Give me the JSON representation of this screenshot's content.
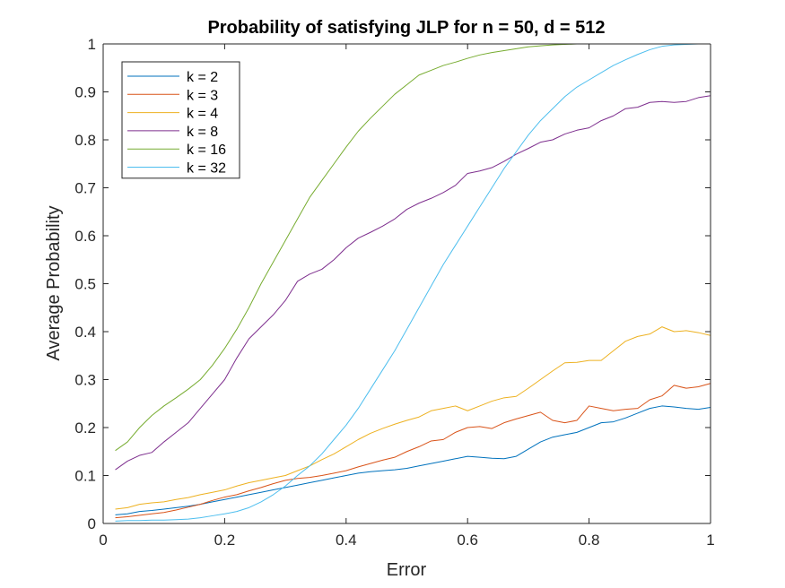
{
  "chart_data": {
    "type": "line",
    "title": "Probability of satisfying JLP for n = 50, d = 512",
    "xlabel": "Error",
    "ylabel": "Average Probability",
    "xlim": [
      0,
      1
    ],
    "ylim": [
      0,
      1
    ],
    "xticks": [
      "0",
      "0.2",
      "0.4",
      "0.6",
      "0.8",
      "1"
    ],
    "yticks": [
      "0",
      "0.1",
      "0.2",
      "0.3",
      "0.4",
      "0.5",
      "0.6",
      "0.7",
      "0.8",
      "0.9",
      "1"
    ],
    "grid": false,
    "legend_position": "top-left",
    "x": [
      0.02,
      0.04,
      0.06,
      0.08,
      0.1,
      0.12,
      0.14,
      0.16,
      0.18,
      0.2,
      0.22,
      0.24,
      0.26,
      0.28,
      0.3,
      0.32,
      0.34,
      0.36,
      0.38,
      0.4,
      0.42,
      0.44,
      0.46,
      0.48,
      0.5,
      0.52,
      0.54,
      0.56,
      0.58,
      0.6,
      0.62,
      0.64,
      0.66,
      0.68,
      0.7,
      0.72,
      0.74,
      0.76,
      0.78,
      0.8,
      0.82,
      0.84,
      0.86,
      0.88,
      0.9,
      0.92,
      0.94,
      0.96,
      0.98,
      1.0
    ],
    "series": [
      {
        "name": "k = 2",
        "color": "#0072BD",
        "values": [
          0.018,
          0.02,
          0.025,
          0.027,
          0.03,
          0.033,
          0.036,
          0.04,
          0.045,
          0.05,
          0.055,
          0.06,
          0.065,
          0.07,
          0.075,
          0.08,
          0.085,
          0.09,
          0.095,
          0.1,
          0.105,
          0.108,
          0.11,
          0.112,
          0.115,
          0.12,
          0.125,
          0.13,
          0.135,
          0.14,
          0.138,
          0.136,
          0.135,
          0.14,
          0.155,
          0.17,
          0.18,
          0.185,
          0.19,
          0.2,
          0.21,
          0.212,
          0.22,
          0.23,
          0.24,
          0.245,
          0.243,
          0.24,
          0.238,
          0.242
        ]
      },
      {
        "name": "k = 3",
        "color": "#D95319",
        "values": [
          0.012,
          0.014,
          0.017,
          0.02,
          0.023,
          0.028,
          0.034,
          0.04,
          0.048,
          0.055,
          0.06,
          0.068,
          0.075,
          0.083,
          0.09,
          0.094,
          0.096,
          0.1,
          0.105,
          0.11,
          0.118,
          0.125,
          0.132,
          0.138,
          0.15,
          0.16,
          0.172,
          0.175,
          0.19,
          0.2,
          0.202,
          0.198,
          0.21,
          0.218,
          0.225,
          0.232,
          0.215,
          0.21,
          0.215,
          0.245,
          0.24,
          0.235,
          0.238,
          0.24,
          0.258,
          0.266,
          0.288,
          0.282,
          0.285,
          0.292
        ]
      },
      {
        "name": "k = 4",
        "color": "#EDB120",
        "values": [
          0.03,
          0.033,
          0.04,
          0.043,
          0.045,
          0.05,
          0.054,
          0.06,
          0.065,
          0.07,
          0.078,
          0.085,
          0.09,
          0.095,
          0.1,
          0.11,
          0.12,
          0.133,
          0.145,
          0.16,
          0.175,
          0.188,
          0.198,
          0.207,
          0.215,
          0.222,
          0.235,
          0.24,
          0.245,
          0.235,
          0.245,
          0.255,
          0.262,
          0.265,
          0.282,
          0.3,
          0.318,
          0.335,
          0.336,
          0.34,
          0.34,
          0.36,
          0.38,
          0.39,
          0.395,
          0.41,
          0.4,
          0.402,
          0.398,
          0.392
        ]
      },
      {
        "name": "k = 8",
        "color": "#7E2F8E",
        "values": [
          0.112,
          0.13,
          0.142,
          0.148,
          0.17,
          0.19,
          0.21,
          0.24,
          0.27,
          0.3,
          0.345,
          0.385,
          0.41,
          0.435,
          0.465,
          0.505,
          0.52,
          0.53,
          0.55,
          0.575,
          0.595,
          0.607,
          0.62,
          0.635,
          0.655,
          0.668,
          0.678,
          0.69,
          0.705,
          0.73,
          0.735,
          0.742,
          0.755,
          0.77,
          0.782,
          0.795,
          0.8,
          0.812,
          0.82,
          0.825,
          0.84,
          0.85,
          0.865,
          0.868,
          0.878,
          0.88,
          0.878,
          0.88,
          0.888,
          0.892
        ]
      },
      {
        "name": "k = 16",
        "color": "#77AC30",
        "values": [
          0.152,
          0.17,
          0.2,
          0.225,
          0.245,
          0.262,
          0.28,
          0.3,
          0.33,
          0.365,
          0.405,
          0.45,
          0.5,
          0.545,
          0.59,
          0.635,
          0.68,
          0.715,
          0.75,
          0.785,
          0.818,
          0.845,
          0.87,
          0.895,
          0.915,
          0.935,
          0.945,
          0.955,
          0.962,
          0.97,
          0.977,
          0.982,
          0.986,
          0.99,
          0.994,
          0.996,
          0.998,
          0.999,
          1.0,
          1.0,
          1.0,
          1.0,
          1.0,
          1.0,
          1.0,
          1.0,
          1.0,
          1.0,
          1.0,
          1.0
        ]
      },
      {
        "name": "k = 32",
        "color": "#4DBEEE",
        "values": [
          0.005,
          0.006,
          0.006,
          0.007,
          0.007,
          0.008,
          0.009,
          0.012,
          0.016,
          0.02,
          0.025,
          0.033,
          0.045,
          0.06,
          0.078,
          0.1,
          0.12,
          0.145,
          0.175,
          0.205,
          0.24,
          0.28,
          0.32,
          0.36,
          0.405,
          0.45,
          0.495,
          0.54,
          0.58,
          0.62,
          0.66,
          0.7,
          0.74,
          0.775,
          0.81,
          0.84,
          0.865,
          0.89,
          0.91,
          0.925,
          0.94,
          0.955,
          0.967,
          0.978,
          0.988,
          0.995,
          0.998,
          0.999,
          1.0,
          1.0
        ]
      }
    ]
  }
}
